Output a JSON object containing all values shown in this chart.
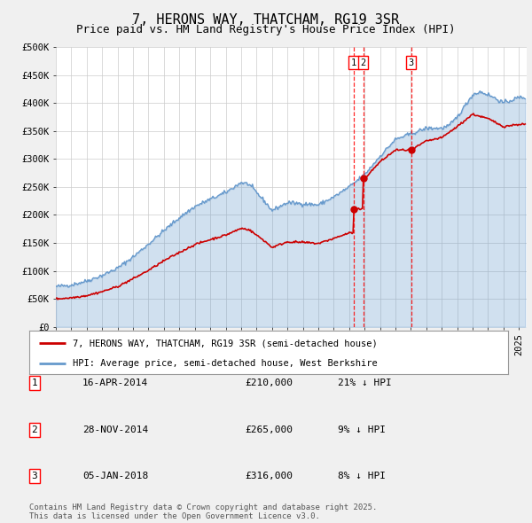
{
  "title": "7, HERONS WAY, THATCHAM, RG19 3SR",
  "subtitle": "Price paid vs. HM Land Registry's House Price Index (HPI)",
  "ylabel_ticks": [
    "£0",
    "£50K",
    "£100K",
    "£150K",
    "£200K",
    "£250K",
    "£300K",
    "£350K",
    "£400K",
    "£450K",
    "£500K"
  ],
  "ytick_values": [
    0,
    50000,
    100000,
    150000,
    200000,
    250000,
    300000,
    350000,
    400000,
    450000,
    500000
  ],
  "ylim": [
    0,
    500000
  ],
  "xlim_start": 1995.0,
  "xlim_end": 2025.5,
  "transactions": [
    {
      "label": "1",
      "date": "16-APR-2014",
      "price": 210000,
      "hpi_diff": "21% ↓ HPI",
      "x": 2014.29
    },
    {
      "label": "2",
      "date": "28-NOV-2014",
      "price": 265000,
      "hpi_diff": "9% ↓ HPI",
      "x": 2014.91
    },
    {
      "label": "3",
      "date": "05-JAN-2018",
      "price": 316000,
      "hpi_diff": "8% ↓ HPI",
      "x": 2018.01
    }
  ],
  "legend_red": "7, HERONS WAY, THATCHAM, RG19 3SR (semi-detached house)",
  "legend_blue": "HPI: Average price, semi-detached house, West Berkshire",
  "footer": "Contains HM Land Registry data © Crown copyright and database right 2025.\nThis data is licensed under the Open Government Licence v3.0.",
  "bg_color": "#f0f0f0",
  "plot_bg_color": "#ffffff",
  "red_color": "#cc0000",
  "blue_color": "#6699cc",
  "title_fontsize": 11,
  "subtitle_fontsize": 9,
  "axis_fontsize": 7.5,
  "legend_fontsize": 7.5,
  "table_fontsize": 8
}
